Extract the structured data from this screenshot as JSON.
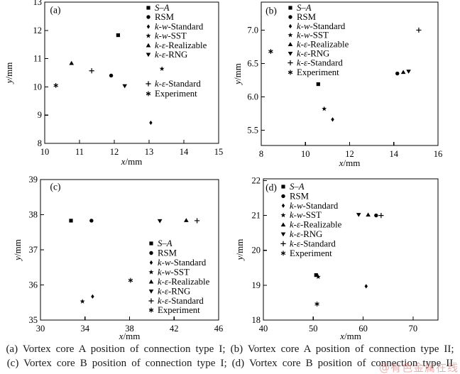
{
  "figure": {
    "caption_line1": "(a) Vortex core A position of connection type I; (b) Vortex core A position of connection type II;",
    "caption_line2": "(c) Vortex core B position of connection type I; (d) Vortex core B position of connection type II",
    "watermark": "@有色金属在线",
    "colors": {
      "ink": "#000000",
      "background": "#ffffff",
      "watermark": "#dd6e6e"
    }
  },
  "chart_data": {
    "type": "scatter",
    "grid": false,
    "series_defs": [
      {
        "name": "s-a",
        "label": "S–A",
        "marker": "square",
        "italic_chars": 3
      },
      {
        "name": "rsm",
        "label": "RSM",
        "marker": "circle",
        "italic_chars": 0
      },
      {
        "name": "k-w-standard",
        "label": "k-w-Standard",
        "marker": "diamond",
        "italic_chars": 3
      },
      {
        "name": "k-w-sst",
        "label": "k-w-SST",
        "marker": "star",
        "italic_chars": 3
      },
      {
        "name": "k-e-realizable",
        "label": "k-ε-Realizable",
        "marker": "triangle-up",
        "italic_chars": 3
      },
      {
        "name": "k-e-rng",
        "label": "k-ε-RNG",
        "marker": "triangle-down",
        "italic_chars": 3
      },
      {
        "name": "k-e-standard",
        "label": "k-ε-Standard",
        "marker": "plus",
        "italic_chars": 3
      },
      {
        "name": "experiment",
        "label": "Experiment",
        "marker": "asterisk",
        "italic_chars": 0
      }
    ],
    "panels": [
      {
        "panel_label": "(a)",
        "xlabel": "x/mm",
        "ylabel": "y/mm",
        "xlim": [
          10,
          15
        ],
        "ylim": [
          8,
          13
        ],
        "xticks": [
          "10",
          "11",
          "12",
          "13",
          "14",
          "15"
        ],
        "yticks": [
          "8",
          "9",
          "10",
          "11",
          "12",
          "13"
        ],
        "legend_position": "upper-right-split",
        "points": [
          [
            12.11,
            11.83
          ],
          [
            11.91,
            10.4
          ],
          [
            13.05,
            8.73
          ],
          [
            13.37,
            10.64
          ],
          [
            10.77,
            10.84
          ],
          [
            12.3,
            10.03
          ],
          [
            11.35,
            10.57
          ],
          [
            10.32,
            10.05
          ]
        ]
      },
      {
        "panel_label": "(b)",
        "xlabel": "x/mm",
        "ylabel": "y/mm",
        "xlim": [
          8,
          16
        ],
        "ylim": [
          5.27,
          7.42
        ],
        "xticks": [
          "8",
          "10",
          "12",
          "14",
          "16"
        ],
        "yticks": [
          "5.5",
          "6.0",
          "6.5",
          "7.0"
        ],
        "legend_position": "upper-left",
        "points": [
          [
            10.58,
            6.19
          ],
          [
            14.16,
            6.35
          ],
          [
            11.23,
            5.66
          ],
          [
            10.85,
            5.82
          ],
          [
            14.43,
            6.37
          ],
          [
            14.67,
            6.38
          ],
          [
            15.13,
            7.0
          ],
          [
            8.43,
            6.68
          ]
        ]
      },
      {
        "panel_label": "(c)",
        "xlabel": "x/mm",
        "ylabel": "y/mm",
        "xlim": [
          30,
          46
        ],
        "ylim": [
          35,
          39
        ],
        "xticks": [
          "30",
          "34",
          "38",
          "42",
          "46"
        ],
        "yticks": [
          "35",
          "36",
          "37",
          "38",
          "39"
        ],
        "legend_position": "center-right-lower",
        "points": [
          [
            32.74,
            37.83
          ],
          [
            34.58,
            37.83
          ],
          [
            34.68,
            35.67
          ],
          [
            33.77,
            35.53
          ],
          [
            43.09,
            37.84
          ],
          [
            40.72,
            37.82
          ],
          [
            44.06,
            37.83
          ],
          [
            38.09,
            36.13
          ]
        ]
      },
      {
        "panel_label": "(d)",
        "xlabel": "x/mm",
        "ylabel": "y/mm",
        "xlim": [
          40,
          75
        ],
        "ylim": [
          18,
          22.05
        ],
        "xticks": [
          "40",
          "50",
          "60",
          "70"
        ],
        "yticks": [
          "18",
          "19",
          "20",
          "21",
          "22"
        ],
        "legend_position": "upper-left",
        "points": [
          [
            50.57,
            19.29
          ],
          [
            62.6,
            21.0
          ],
          [
            60.6,
            18.97
          ],
          [
            51.0,
            19.24
          ],
          [
            61.0,
            21.02
          ],
          [
            59.1,
            21.02
          ],
          [
            63.6,
            21.0
          ],
          [
            50.75,
            18.46
          ]
        ]
      }
    ]
  }
}
